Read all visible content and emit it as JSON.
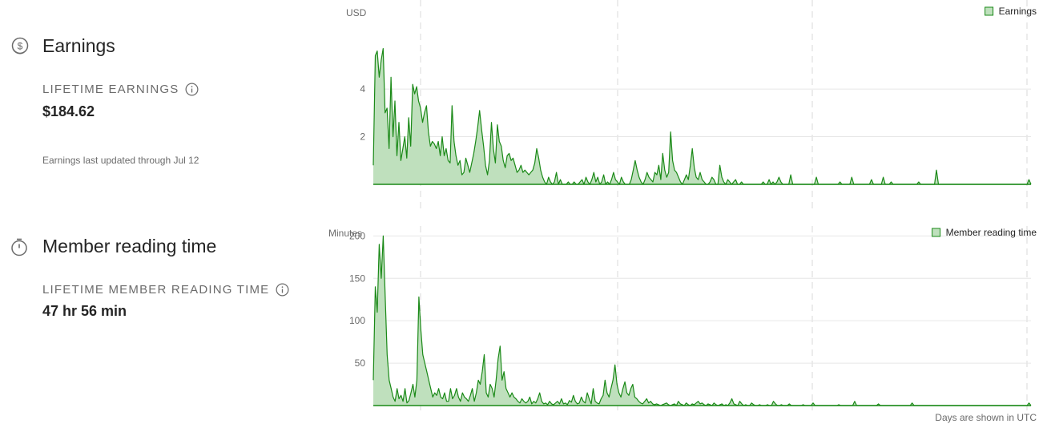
{
  "earnings": {
    "title": "Earnings",
    "icon": "dollar-coin-icon",
    "stat_label": "LIFETIME EARNINGS",
    "stat_value": "$184.62",
    "note": "Earnings last updated through Jul 12"
  },
  "reading": {
    "title": "Member reading time",
    "icon": "stopwatch-icon",
    "stat_label": "LIFETIME MEMBER READING TIME",
    "stat_value": "47 hr 56 min"
  },
  "footnote": "Days are shown in UTC",
  "colors": {
    "line": "#1a8917",
    "fill": "#bfe0bd",
    "grid": "#e6e6e6"
  },
  "chart_data": [
    {
      "type": "area",
      "name": "earnings_chart",
      "ylabel": "USD",
      "yticks": [
        2,
        4
      ],
      "ylim": [
        0,
        7.2
      ],
      "grid": true,
      "legend": "top-right",
      "series": [
        {
          "name": "Earnings",
          "values": [
            0.8,
            5.4,
            5.6,
            4.5,
            5.2,
            5.7,
            3.0,
            3.2,
            1.5,
            4.5,
            2.0,
            3.5,
            1.2,
            2.6,
            1.0,
            1.5,
            2.0,
            1.1,
            2.8,
            1.6,
            4.2,
            3.8,
            4.1,
            3.5,
            3.2,
            2.6,
            3.0,
            3.3,
            2.2,
            1.6,
            1.8,
            1.7,
            1.5,
            1.8,
            1.2,
            2.0,
            1.2,
            1.5,
            1.0,
            0.9,
            3.3,
            1.8,
            1.2,
            0.8,
            1.0,
            0.4,
            0.5,
            1.1,
            0.8,
            0.5,
            0.9,
            1.3,
            1.8,
            2.4,
            3.1,
            2.3,
            1.6,
            0.8,
            0.4,
            1.0,
            2.6,
            1.5,
            0.9,
            2.5,
            1.8,
            1.6,
            1.0,
            0.7,
            1.2,
            1.3,
            1.0,
            1.1,
            0.8,
            0.5,
            0.6,
            0.8,
            0.5,
            0.6,
            0.5,
            0.4,
            0.5,
            0.6,
            0.9,
            1.5,
            1.1,
            0.6,
            0.3,
            0.1,
            0.0,
            0.3,
            0.1,
            0.0,
            0.1,
            0.5,
            0.0,
            0.2,
            0.0,
            0.0,
            0.0,
            0.1,
            0.0,
            0.0,
            0.1,
            0.0,
            0.0,
            0.1,
            0.2,
            0.0,
            0.3,
            0.1,
            0.0,
            0.2,
            0.5,
            0.1,
            0.3,
            0.0,
            0.1,
            0.4,
            0.0,
            0.1,
            0.0,
            0.2,
            0.5,
            0.2,
            0.1,
            0.0,
            0.3,
            0.1,
            0.0,
            0.0,
            0.0,
            0.2,
            0.6,
            1.0,
            0.6,
            0.3,
            0.1,
            0.0,
            0.2,
            0.5,
            0.3,
            0.2,
            0.1,
            0.5,
            0.4,
            0.8,
            0.2,
            1.3,
            0.6,
            0.3,
            0.5,
            2.2,
            1.0,
            0.6,
            0.5,
            0.3,
            0.1,
            0.0,
            0.2,
            0.4,
            0.2,
            0.8,
            1.5,
            0.7,
            0.3,
            0.2,
            0.5,
            0.2,
            0.1,
            0.0,
            0.0,
            0.1,
            0.3,
            0.2,
            0.0,
            0.0,
            0.8,
            0.3,
            0.1,
            0.0,
            0.2,
            0.1,
            0.0,
            0.1,
            0.2,
            0.0,
            0.0,
            0.1,
            0.0,
            0.0,
            0.0,
            0.0,
            0.0,
            0.0,
            0.0,
            0.0,
            0.0,
            0.0,
            0.1,
            0.0,
            0.0,
            0.2,
            0.0,
            0.1,
            0.0,
            0.1,
            0.3,
            0.1,
            0.0,
            0.0,
            0.0,
            0.0,
            0.4,
            0.0,
            0.0,
            0.0,
            0.0,
            0.0,
            0.0,
            0.0,
            0.0,
            0.0,
            0.0,
            0.0,
            0.0,
            0.3,
            0.0,
            0.0,
            0.0,
            0.0,
            0.0,
            0.0,
            0.0,
            0.0,
            0.0,
            0.0,
            0.0,
            0.1,
            0.0,
            0.0,
            0.0,
            0.0,
            0.0,
            0.3,
            0.0,
            0.0,
            0.0,
            0.0,
            0.0,
            0.0,
            0.0,
            0.0,
            0.0,
            0.2,
            0.0,
            0.0,
            0.0,
            0.0,
            0.0,
            0.3,
            0.0,
            0.0,
            0.0,
            0.1,
            0.0,
            0.0,
            0.0,
            0.0,
            0.0,
            0.0,
            0.0,
            0.0,
            0.0,
            0.0,
            0.0,
            0.0,
            0.0,
            0.1,
            0.0,
            0.0,
            0.0,
            0.0,
            0.0,
            0.0,
            0.0,
            0.0,
            0.6,
            0.0,
            0.0,
            0.0,
            0.0,
            0.0,
            0.0,
            0.0,
            0.0,
            0.0,
            0.0,
            0.0,
            0.0,
            0.0,
            0.0,
            0.0,
            0.0,
            0.0,
            0.0,
            0.0,
            0.0,
            0.0,
            0.0,
            0.0,
            0.0,
            0.0,
            0.0,
            0.0,
            0.0,
            0.0,
            0.0,
            0.0,
            0.0,
            0.0,
            0.0,
            0.0,
            0.0,
            0.0,
            0.0,
            0.0,
            0.0,
            0.0,
            0.0,
            0.0,
            0.0,
            0.0,
            0.0,
            0.2,
            0.0
          ]
        }
      ]
    },
    {
      "type": "area",
      "name": "reading_chart",
      "ylabel": "Minutes",
      "yticks": [
        50,
        100,
        150,
        200
      ],
      "ylim": [
        0,
        206
      ],
      "grid": true,
      "legend": "top-right",
      "series": [
        {
          "name": "Member reading time",
          "values": [
            30,
            140,
            110,
            190,
            150,
            200,
            130,
            60,
            30,
            20,
            10,
            5,
            20,
            8,
            12,
            5,
            20,
            3,
            6,
            15,
            25,
            10,
            30,
            128,
            90,
            60,
            50,
            40,
            30,
            20,
            10,
            15,
            12,
            20,
            10,
            8,
            15,
            5,
            5,
            20,
            8,
            12,
            20,
            10,
            5,
            15,
            10,
            8,
            5,
            12,
            20,
            5,
            15,
            30,
            25,
            40,
            60,
            15,
            10,
            25,
            20,
            10,
            30,
            55,
            70,
            30,
            40,
            20,
            15,
            10,
            15,
            10,
            8,
            5,
            3,
            8,
            5,
            3,
            5,
            10,
            2,
            5,
            3,
            8,
            15,
            5,
            2,
            3,
            1,
            5,
            2,
            1,
            3,
            5,
            2,
            8,
            2,
            3,
            1,
            6,
            4,
            12,
            5,
            2,
            3,
            10,
            5,
            3,
            15,
            8,
            2,
            20,
            5,
            3,
            2,
            8,
            12,
            30,
            15,
            10,
            20,
            30,
            48,
            25,
            15,
            10,
            20,
            28,
            15,
            12,
            20,
            25,
            10,
            8,
            5,
            3,
            2,
            5,
            8,
            3,
            5,
            2,
            1,
            2,
            1,
            0,
            1,
            2,
            3,
            1,
            0,
            1,
            2,
            0,
            5,
            2,
            1,
            0,
            3,
            1,
            0,
            2,
            1,
            3,
            5,
            2,
            3,
            1,
            0,
            2,
            1,
            0,
            3,
            1,
            0,
            1,
            2,
            0,
            1,
            0,
            3,
            8,
            2,
            1,
            0,
            5,
            2,
            0,
            1,
            0,
            0,
            3,
            1,
            0,
            0,
            1,
            0,
            0,
            0,
            1,
            0,
            0,
            5,
            2,
            0,
            0,
            1,
            0,
            0,
            0,
            2,
            0,
            0,
            0,
            0,
            0,
            0,
            1,
            0,
            0,
            0,
            0,
            3,
            0,
            0,
            0,
            0,
            0,
            0,
            0,
            0,
            0,
            0,
            0,
            0,
            1,
            0,
            0,
            0,
            0,
            0,
            0,
            0,
            5,
            0,
            0,
            0,
            0,
            0,
            0,
            0,
            0,
            0,
            0,
            0,
            2,
            0,
            0,
            0,
            0,
            0,
            0,
            0,
            0,
            0,
            0,
            0,
            0,
            0,
            0,
            0,
            0,
            3,
            0,
            0,
            0,
            0,
            0,
            0,
            0,
            0,
            0,
            0,
            0,
            0,
            0,
            0,
            0,
            0,
            0,
            0,
            0,
            0,
            0,
            0,
            0,
            0,
            0,
            0,
            0,
            0,
            0,
            0,
            0,
            0,
            0,
            0,
            0,
            0,
            0,
            0,
            0,
            0,
            0,
            0,
            0,
            0,
            0,
            0,
            0,
            0,
            0,
            0,
            0,
            0,
            0,
            0,
            0,
            0,
            0,
            0,
            3,
            0
          ]
        }
      ]
    }
  ]
}
